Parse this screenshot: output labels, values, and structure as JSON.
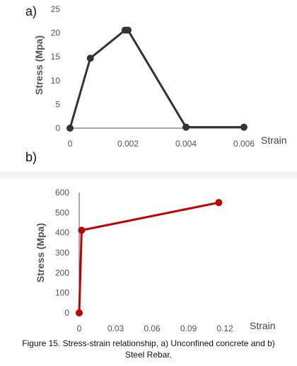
{
  "chart_data": [
    {
      "type": "line",
      "panel_label": "a)",
      "xlabel": "Strain",
      "ylabel": "Stress (Mpa)",
      "xlim": [
        0,
        0.006
      ],
      "ylim": [
        0,
        25
      ],
      "xticks": [
        0,
        0.002,
        0.004,
        0.006
      ],
      "xtick_labels": [
        "0",
        "0.002",
        "0.004",
        "0.006"
      ],
      "yticks": [
        0,
        5,
        10,
        15,
        20,
        25
      ],
      "ytick_labels": [
        "0",
        "5",
        "10",
        "15",
        "20",
        "25"
      ],
      "grid": false,
      "color": "#333333",
      "series": [
        {
          "x": [
            0,
            0.0007,
            0.0019,
            0.002,
            0.004,
            0.006
          ],
          "y": [
            0,
            14.7,
            20.6,
            20.6,
            0.2,
            0.2
          ]
        }
      ]
    },
    {
      "type": "line",
      "panel_label": "b)",
      "xlabel": "Strain",
      "ylabel": "Stress (Mpa)",
      "xlim": [
        0,
        0.12
      ],
      "ylim": [
        0,
        600
      ],
      "xticks": [
        0,
        0.03,
        0.06,
        0.09,
        0.12
      ],
      "xtick_labels": [
        "0",
        "0.03",
        "0.06",
        "0.09",
        "0.12"
      ],
      "yticks": [
        0,
        100,
        200,
        300,
        400,
        500,
        600
      ],
      "ytick_labels": [
        "0",
        "100",
        "200",
        "300",
        "400",
        "500",
        "600"
      ],
      "grid": false,
      "color": "#c00000",
      "series": [
        {
          "x": [
            0,
            0.002,
            0.115
          ],
          "y": [
            0,
            412,
            550
          ]
        }
      ]
    }
  ],
  "caption": {
    "line1": "Figure 15. Stress-strain relationship, a) Unconfined concrete and b)",
    "line2": "Steel Rebar."
  }
}
